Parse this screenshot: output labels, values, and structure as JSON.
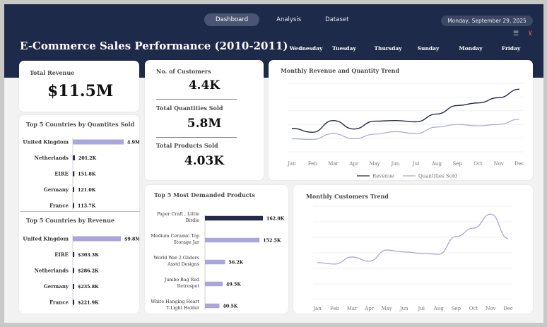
{
  "nav": {
    "tabs": [
      {
        "label": "Dashboard",
        "active": true
      },
      {
        "label": "Analysis",
        "active": false
      },
      {
        "label": "Dataset",
        "active": false
      }
    ],
    "date": "Monday, September 29, 2025",
    "icons": [
      "list-filter-icon",
      "clear-filter-icon"
    ]
  },
  "header": {
    "title": "E-Commerce Sales Performance (2010-2011)",
    "days": [
      "Wednesday",
      "Tuesday",
      "Thursday",
      "Sunday",
      "Monday",
      "Friday"
    ]
  },
  "kpi": {
    "revenue_label": "Total Revenue",
    "revenue_value": "$11.5M",
    "customers_label": "No. of Customers",
    "customers_value": "4.4K",
    "quantities_label": "Total Quantities Sold",
    "quantities_value": "5.8M",
    "products_label": "Total Products Sold",
    "products_value": "4.03K"
  },
  "colors": {
    "header": "#1e2a4a",
    "dark_series": "#252a4a",
    "light_series": "#a9a6dc"
  },
  "chart_data": [
    {
      "id": "countries_qty",
      "type": "bar",
      "orientation": "horizontal",
      "title": "Top 5 Countries by Quantites Sold",
      "categories": [
        "United Kingdom",
        "Netherlands",
        "EIRE",
        "Germany",
        "France"
      ],
      "values": [
        4.9,
        0.2012,
        0.1518,
        0.121,
        0.1137
      ],
      "labels": [
        "4.9M",
        "201.2K",
        "151.8K",
        "121.0K",
        "113.7K"
      ]
    },
    {
      "id": "countries_rev",
      "type": "bar",
      "orientation": "horizontal",
      "title": "Top 5 Countries by Revenue",
      "categories": [
        "United Kingdom",
        "EIRE",
        "Netherlands",
        "Germany",
        "France"
      ],
      "values": [
        9.8,
        0.3033,
        0.2862,
        0.2358,
        0.2219
      ],
      "labels": [
        "$9.8M",
        "$303.3K",
        "$286.2K",
        "$235.8K",
        "$221.9K"
      ]
    },
    {
      "id": "products",
      "type": "bar",
      "orientation": "horizontal",
      "title": "Top 5 Most Demanded Products",
      "categories": [
        [
          "Paper Craft , Little",
          "Birdie"
        ],
        [
          "Medium Ceramic Top",
          "Storage Jar"
        ],
        [
          "World War 2 Gliders",
          "Asstd Designs"
        ],
        [
          "Jumbo Bag Red",
          "Retrospot"
        ],
        [
          "White Hanging Heart",
          "T-Light Holder"
        ]
      ],
      "values": [
        162.0,
        152.5,
        56.2,
        49.5,
        40.5
      ],
      "labels": [
        "162.0K",
        "152.5K",
        "56.2K",
        "49.5K",
        "40.5K"
      ],
      "highlight": 0
    },
    {
      "id": "rev_qty_trend",
      "type": "line",
      "title": "Monthly Revenue and Quantity Trend",
      "categories": [
        "Jan",
        "Feb",
        "Mar",
        "Apr",
        "May",
        "Jun",
        "Jul",
        "Aug",
        "Sep",
        "Oct",
        "Nov",
        "Dec"
      ],
      "series": [
        {
          "name": "Revenue",
          "values": [
            0.56,
            0.5,
            0.68,
            0.55,
            0.67,
            0.68,
            0.66,
            0.78,
            0.91,
            0.95,
            1.03,
            1.16
          ]
        },
        {
          "name": "Quantities Sold",
          "values": [
            0.4,
            0.39,
            0.48,
            0.4,
            0.47,
            0.51,
            0.48,
            0.58,
            0.62,
            0.6,
            0.62,
            0.7
          ]
        }
      ],
      "legend": "bottom",
      "grid": true
    },
    {
      "id": "customers_trend",
      "type": "line",
      "title": "Monthly Customers Trend",
      "categories": [
        "Jan",
        "Feb",
        "Mar",
        "Apr",
        "May",
        "Jun",
        "Jul",
        "Aug",
        "Sep",
        "Oct",
        "Nov",
        "Dec"
      ],
      "series": [
        {
          "name": "Customers",
          "values": [
            1.09,
            1.06,
            1.21,
            1.12,
            1.36,
            1.32,
            1.29,
            1.27,
            1.65,
            1.83,
            2.13,
            1.61
          ]
        }
      ],
      "grid": true
    }
  ]
}
